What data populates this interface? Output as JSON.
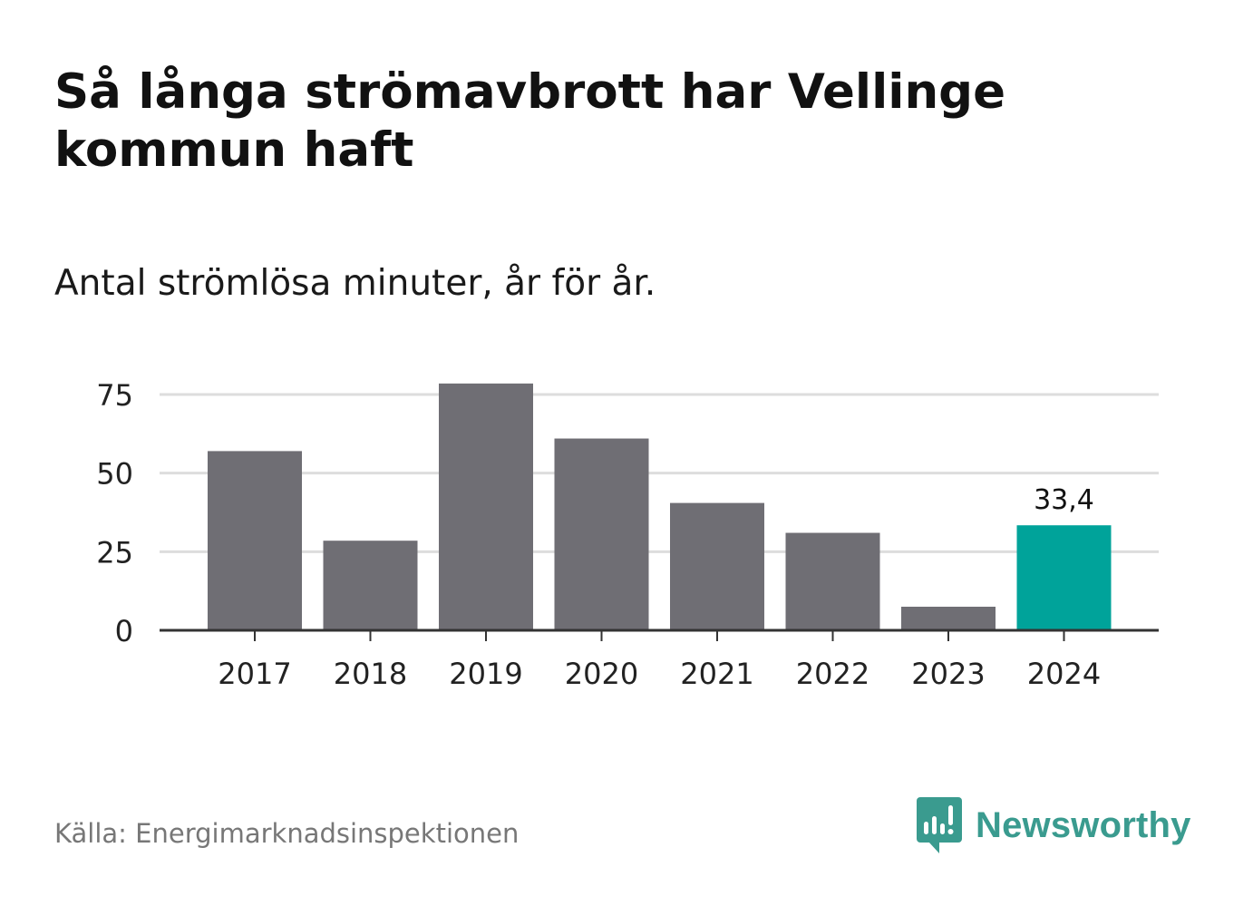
{
  "header": {
    "title": "Så långa strömavbrott har Vellinge kommun haft",
    "subtitle": "Antal strömlösa minuter, år för år."
  },
  "footer": {
    "source": "Källa: Energimarknadsinspektionen",
    "brand": "Newsworthy"
  },
  "colors": {
    "bar": "#6f6e74",
    "highlight": "#00a39a",
    "grid": "#dddddd",
    "axis": "#333333",
    "text": "#222222",
    "brand": "#3a9b8f"
  },
  "chart_data": {
    "type": "bar",
    "title": "Så långa strömavbrott har Vellinge kommun haft",
    "subtitle": "Antal strömlösa minuter, år för år.",
    "xlabel": "",
    "ylabel": "",
    "categories": [
      "2017",
      "2018",
      "2019",
      "2020",
      "2021",
      "2022",
      "2023",
      "2024"
    ],
    "values": [
      57,
      28.5,
      78.5,
      61,
      40.5,
      31,
      7.5,
      33.4
    ],
    "highlight_index": 7,
    "data_labels": [
      {
        "index": 7,
        "text": "33,4"
      }
    ],
    "yticks": [
      0,
      25,
      50,
      75
    ],
    "ytick_labels": [
      "0",
      "25",
      "50",
      "75"
    ],
    "ylim": [
      0,
      80
    ],
    "grid": true,
    "legend": "none"
  }
}
